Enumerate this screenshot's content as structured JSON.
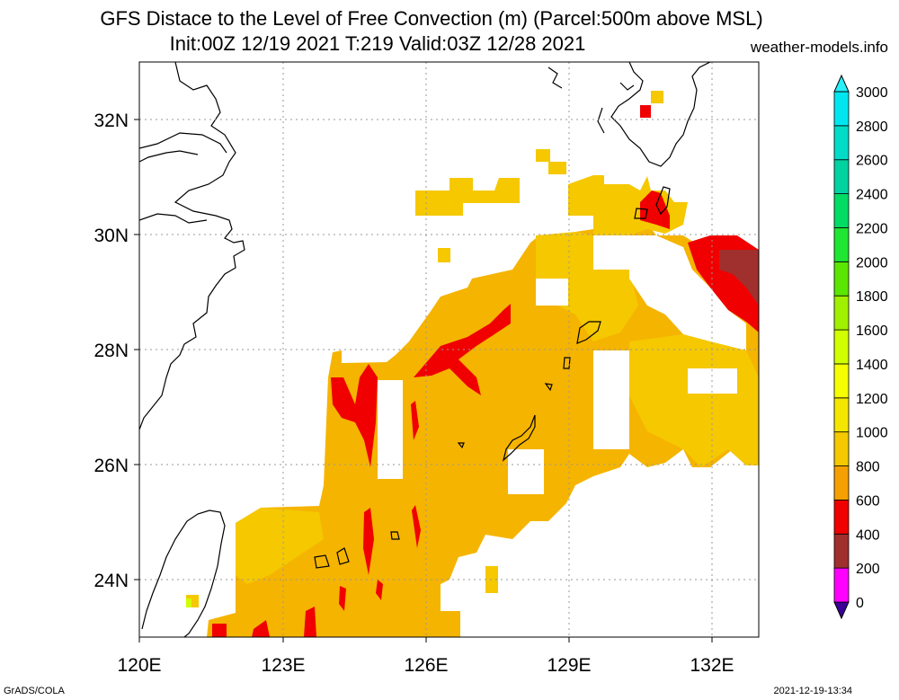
{
  "title_line1": "GFS Distace to the Level of Free Convection (m) (Parcel:500m above MSL)",
  "title_line2": "Init:00Z 12/19 2021 T:219 Valid:03Z 12/28 2021",
  "credit": "weather-models.info",
  "footer_left": "GrADS/COLA",
  "footer_right": "2021-12-19-13:34",
  "map": {
    "lon_range": [
      120,
      133
    ],
    "lat_range": [
      23,
      33
    ],
    "lon_ticks": [
      "120E",
      "123E",
      "126E",
      "129E",
      "132E"
    ],
    "lat_ticks": [
      "24N",
      "26N",
      "28N",
      "30N",
      "32N"
    ],
    "grid": true
  },
  "colorbar": {
    "labels": [
      "0",
      "200",
      "400",
      "600",
      "800",
      "1000",
      "1200",
      "1400",
      "1600",
      "1800",
      "2000",
      "2200",
      "2400",
      "2600",
      "2800",
      "3000"
    ],
    "colors": [
      "#3c0096",
      "#ff00ff",
      "#a0302e",
      "#f00000",
      "#f5a000",
      "#f5c800",
      "#f5e600",
      "#f5ff00",
      "#d2ff00",
      "#a0f000",
      "#5ae600",
      "#1ee632",
      "#00dc64",
      "#00d2a0",
      "#00dcc8",
      "#00e6f0",
      "#28f0fa"
    ]
  }
}
